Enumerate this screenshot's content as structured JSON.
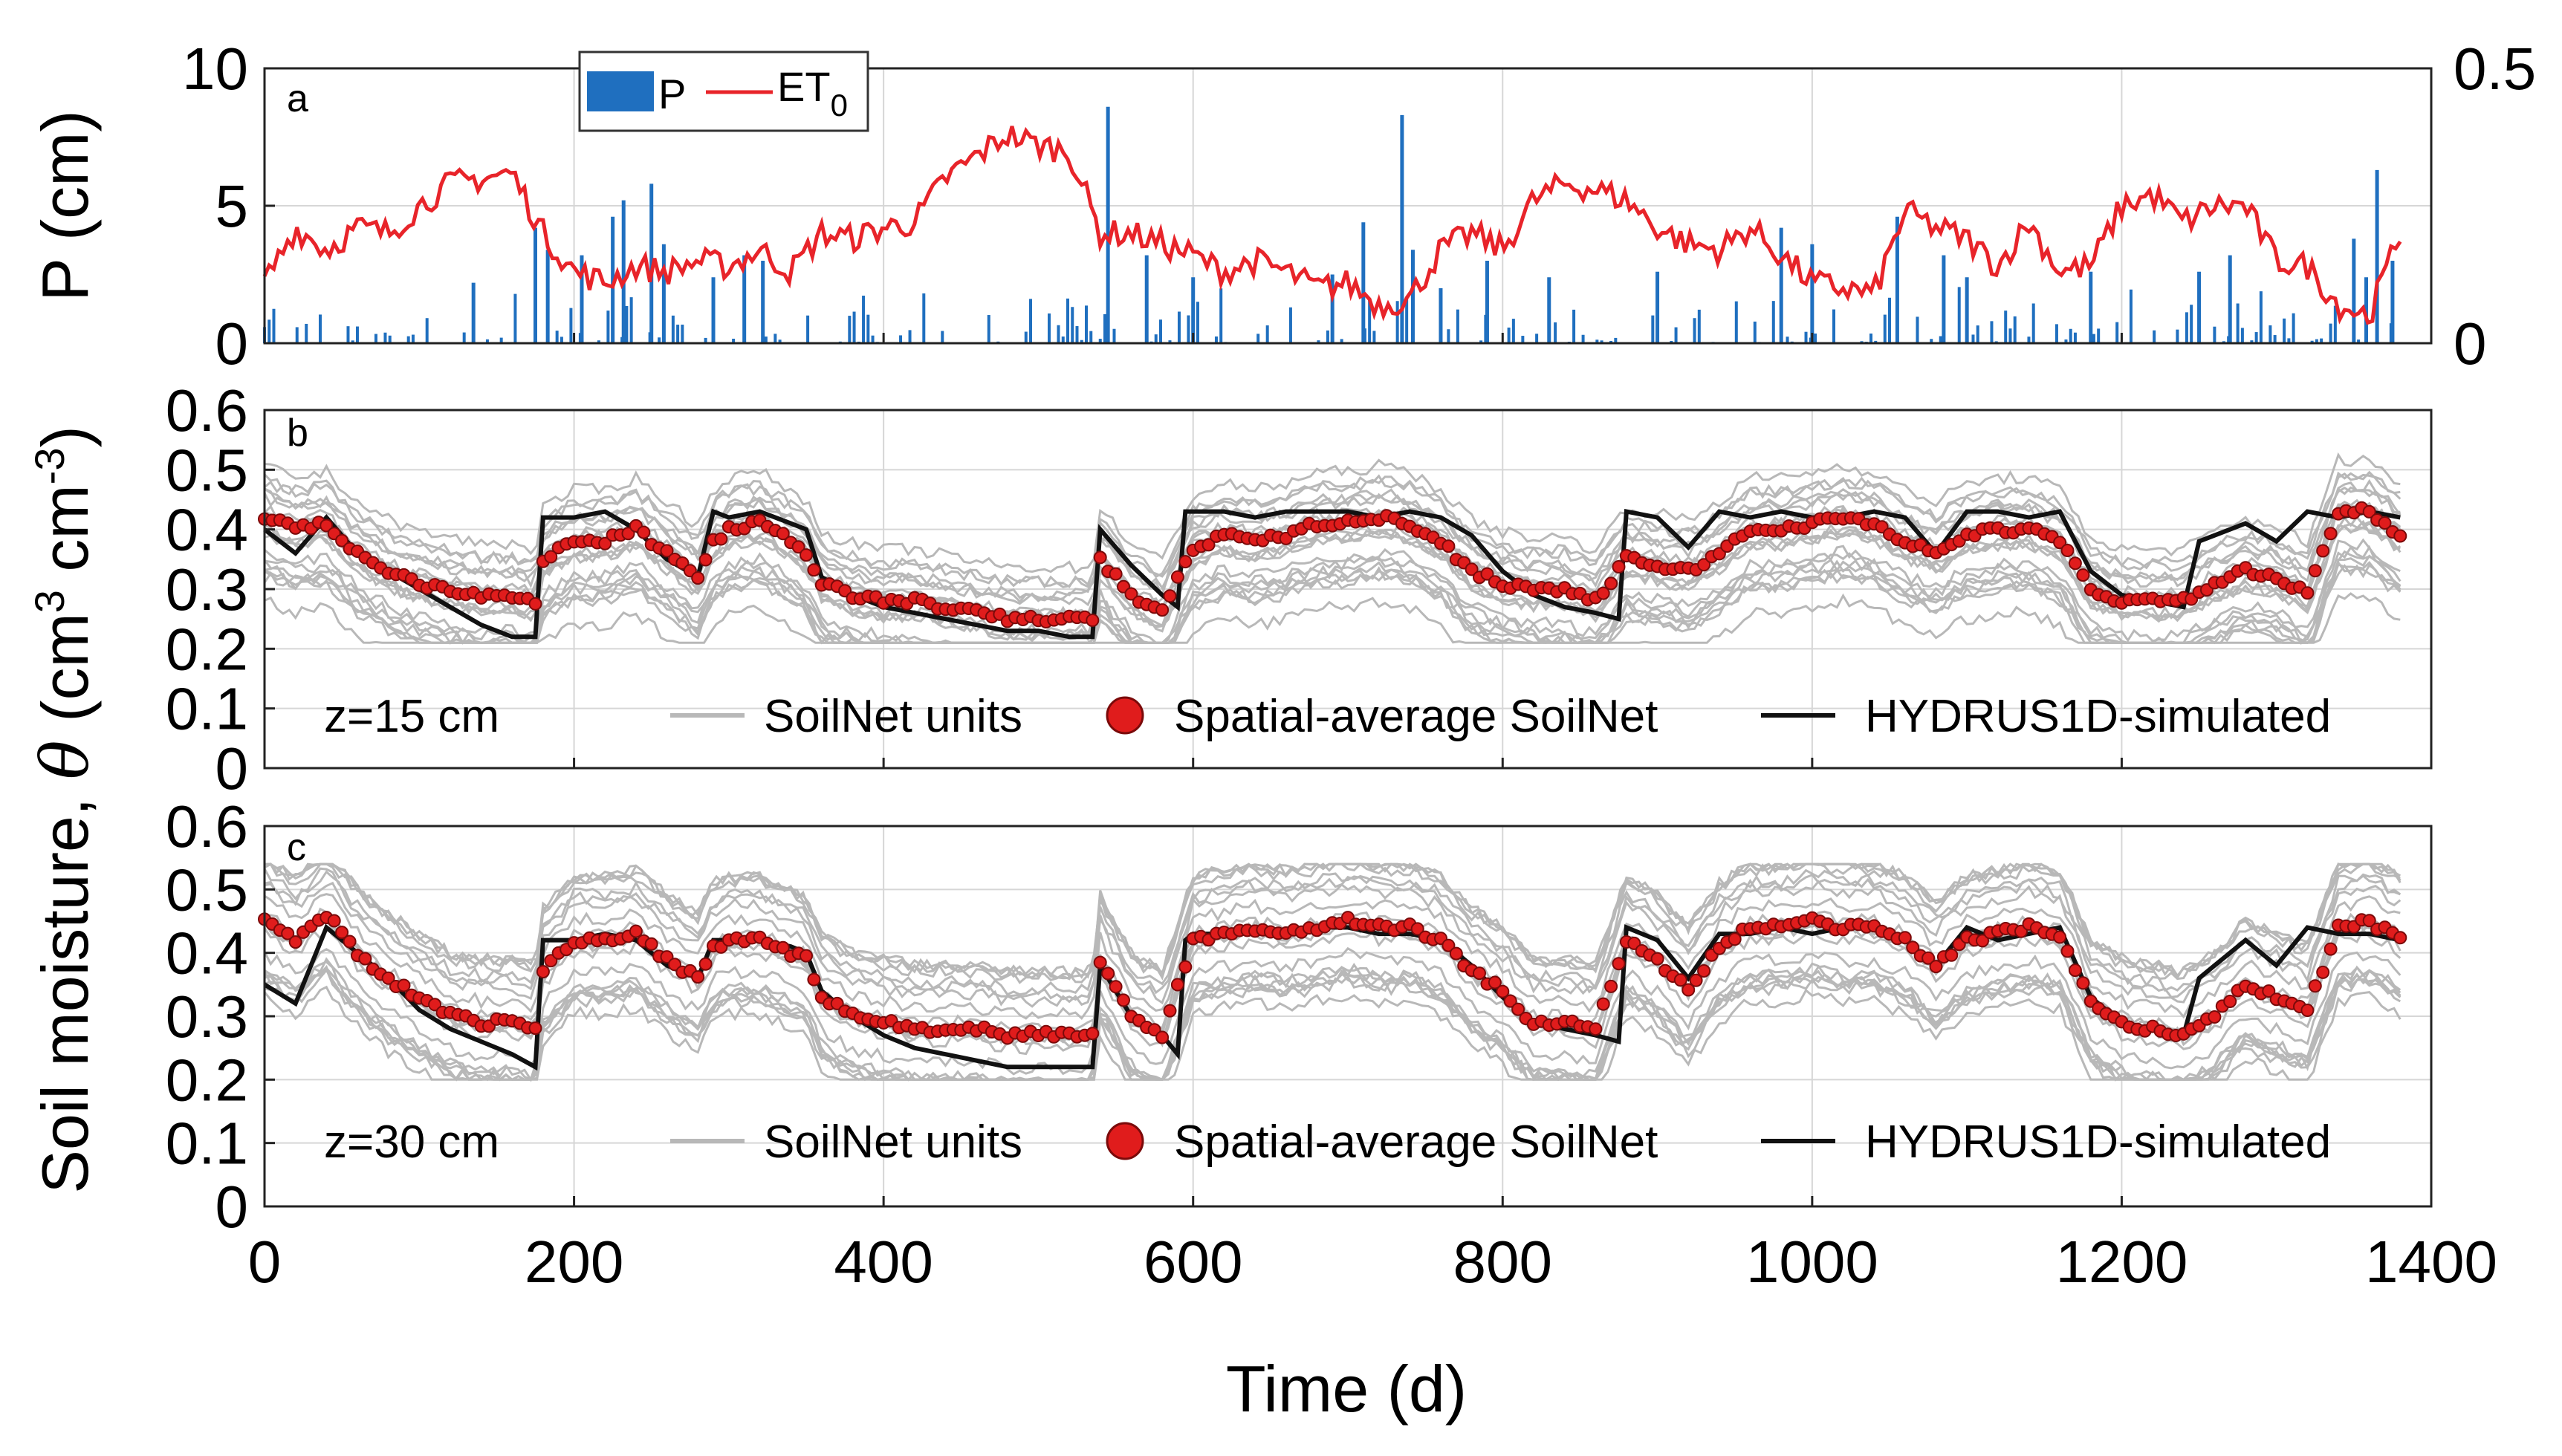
{
  "colors": {
    "precip": "#1f6fbf",
    "et0": "#e8242a",
    "units": "#b8b8b8",
    "avg_fill": "#e01c1c",
    "avg_edge": "#7a0a0a",
    "sim": "#111111"
  },
  "chart_data": [
    {
      "id": "a",
      "type": "bar+line",
      "panel_label": "a",
      "ylabel": "P (cm)",
      "xlim": [
        0,
        1400
      ],
      "ylim": [
        0,
        10
      ],
      "y2lim": [
        0,
        0.5
      ],
      "y_ticks": [
        "0",
        "5",
        "10"
      ],
      "y2_ticks": [
        "0",
        "0.5"
      ],
      "legend": {
        "p": "P",
        "et0": "ET",
        "et0_sub": "0"
      },
      "series": [
        {
          "name": "P",
          "kind": "bar",
          "note": "daily precipitation spikes, 0-8.6 cm",
          "peaks": [
            [
              135,
              2.2
            ],
            [
              175,
              4.2
            ],
            [
              183,
              3.4
            ],
            [
              205,
              3.2
            ],
            [
              225,
              4.6
            ],
            [
              232,
              5.2
            ],
            [
              250,
              5.8
            ],
            [
              258,
              3.6
            ],
            [
              290,
              2.4
            ],
            [
              310,
              3.2
            ],
            [
              322,
              3.0
            ],
            [
              545,
              8.6
            ],
            [
              570,
              3.2
            ],
            [
              600,
              2.4
            ],
            [
              690,
              2.5
            ],
            [
              710,
              4.4
            ],
            [
              735,
              8.3
            ],
            [
              742,
              3.4
            ],
            [
              760,
              2.0
            ],
            [
              790,
              3.0
            ],
            [
              830,
              2.4
            ],
            [
              900,
              2.6
            ],
            [
              980,
              4.2
            ],
            [
              1000,
              3.6
            ],
            [
              1055,
              4.6
            ],
            [
              1085,
              3.2
            ],
            [
              1100,
              2.4
            ],
            [
              1180,
              2.6
            ],
            [
              1250,
              2.6
            ],
            [
              1270,
              3.2
            ],
            [
              1350,
              3.8
            ],
            [
              1358,
              2.4
            ],
            [
              1365,
              6.3
            ],
            [
              1375,
              3.0
            ]
          ]
        },
        {
          "name": "ET0",
          "kind": "line",
          "note": "reference evapotranspiration (cm/d) on right axis, sampled every 20 d",
          "x": [
            0,
            20,
            40,
            60,
            80,
            100,
            120,
            140,
            160,
            180,
            200,
            220,
            240,
            260,
            280,
            300,
            320,
            340,
            360,
            380,
            400,
            420,
            440,
            460,
            480,
            500,
            520,
            540,
            560,
            580,
            600,
            620,
            640,
            660,
            680,
            700,
            720,
            740,
            760,
            780,
            800,
            820,
            840,
            860,
            880,
            900,
            920,
            940,
            960,
            980,
            1000,
            1020,
            1040,
            1060,
            1080,
            1100,
            1120,
            1140,
            1160,
            1180,
            1200,
            1220,
            1240,
            1260,
            1280,
            1300,
            1320,
            1340,
            1360,
            1380
          ],
          "y": [
            0.11,
            0.21,
            0.17,
            0.21,
            0.2,
            0.25,
            0.29,
            0.3,
            0.31,
            0.2,
            0.13,
            0.11,
            0.14,
            0.13,
            0.15,
            0.14,
            0.17,
            0.13,
            0.2,
            0.19,
            0.21,
            0.22,
            0.3,
            0.34,
            0.38,
            0.36,
            0.35,
            0.2,
            0.2,
            0.18,
            0.16,
            0.13,
            0.15,
            0.13,
            0.1,
            0.11,
            0.07,
            0.08,
            0.17,
            0.2,
            0.17,
            0.26,
            0.29,
            0.28,
            0.26,
            0.21,
            0.18,
            0.17,
            0.21,
            0.16,
            0.11,
            0.1,
            0.09,
            0.24,
            0.21,
            0.19,
            0.14,
            0.22,
            0.13,
            0.14,
            0.25,
            0.27,
            0.22,
            0.25,
            0.25,
            0.15,
            0.14,
            0.07,
            0.05,
            0.2
          ]
        }
      ]
    },
    {
      "id": "b",
      "type": "line+scatter",
      "panel_label": "b",
      "depth_label": "z=15 cm",
      "xlim": [
        0,
        1400
      ],
      "ylim": [
        0,
        0.6
      ],
      "y_ticks": [
        "0",
        "0.1",
        "0.2",
        "0.3",
        "0.4",
        "0.5",
        "0.6"
      ],
      "legend": {
        "units": "SoilNet units",
        "avg": "Spatial-average SoilNet",
        "sim": "HYDRUS1D-simulated"
      },
      "series": [
        {
          "name": "HYDRUS1D-simulated",
          "kind": "line",
          "x": [
            0,
            20,
            40,
            60,
            80,
            100,
            120,
            140,
            160,
            175,
            180,
            200,
            220,
            240,
            260,
            280,
            290,
            300,
            320,
            340,
            350,
            360,
            380,
            400,
            420,
            440,
            460,
            480,
            500,
            520,
            535,
            540,
            560,
            580,
            590,
            595,
            600,
            620,
            640,
            660,
            680,
            700,
            720,
            740,
            760,
            780,
            800,
            820,
            840,
            860,
            875,
            880,
            900,
            920,
            940,
            960,
            980,
            1000,
            1020,
            1040,
            1060,
            1080,
            1100,
            1120,
            1140,
            1160,
            1180,
            1200,
            1220,
            1240,
            1250,
            1260,
            1280,
            1300,
            1320,
            1340,
            1360,
            1380
          ],
          "y": [
            0.4,
            0.36,
            0.42,
            0.36,
            0.33,
            0.3,
            0.27,
            0.24,
            0.22,
            0.22,
            0.42,
            0.42,
            0.43,
            0.4,
            0.35,
            0.32,
            0.43,
            0.42,
            0.43,
            0.41,
            0.4,
            0.32,
            0.29,
            0.27,
            0.26,
            0.25,
            0.24,
            0.23,
            0.23,
            0.22,
            0.22,
            0.4,
            0.34,
            0.29,
            0.27,
            0.43,
            0.43,
            0.43,
            0.42,
            0.43,
            0.43,
            0.43,
            0.42,
            0.43,
            0.42,
            0.39,
            0.33,
            0.29,
            0.27,
            0.26,
            0.25,
            0.43,
            0.42,
            0.37,
            0.43,
            0.42,
            0.43,
            0.42,
            0.42,
            0.43,
            0.42,
            0.36,
            0.43,
            0.43,
            0.42,
            0.43,
            0.33,
            0.29,
            0.28,
            0.27,
            0.38,
            0.39,
            0.41,
            0.38,
            0.43,
            0.42,
            0.43,
            0.42
          ]
        },
        {
          "name": "Spatial-average SoilNet",
          "kind": "scatter",
          "x": [
            0,
            20,
            40,
            60,
            80,
            100,
            120,
            140,
            160,
            175,
            180,
            200,
            220,
            240,
            260,
            280,
            290,
            300,
            320,
            340,
            350,
            360,
            380,
            400,
            420,
            440,
            460,
            480,
            500,
            520,
            535,
            540,
            560,
            580,
            600,
            620,
            640,
            660,
            680,
            700,
            720,
            740,
            760,
            780,
            800,
            820,
            840,
            860,
            880,
            900,
            920,
            940,
            960,
            980,
            1000,
            1020,
            1040,
            1060,
            1080,
            1100,
            1120,
            1140,
            1160,
            1180,
            1200,
            1220,
            1240,
            1260,
            1280,
            1300,
            1320,
            1340,
            1360,
            1380
          ],
          "y": [
            0.42,
            0.4,
            0.41,
            0.36,
            0.33,
            0.31,
            0.3,
            0.29,
            0.29,
            0.28,
            0.35,
            0.38,
            0.38,
            0.4,
            0.36,
            0.32,
            0.38,
            0.4,
            0.41,
            0.38,
            0.36,
            0.31,
            0.29,
            0.28,
            0.28,
            0.27,
            0.26,
            0.25,
            0.25,
            0.25,
            0.25,
            0.35,
            0.29,
            0.26,
            0.37,
            0.39,
            0.38,
            0.39,
            0.41,
            0.41,
            0.42,
            0.41,
            0.38,
            0.33,
            0.31,
            0.3,
            0.3,
            0.28,
            0.35,
            0.34,
            0.33,
            0.36,
            0.4,
            0.4,
            0.41,
            0.42,
            0.41,
            0.38,
            0.36,
            0.39,
            0.4,
            0.4,
            0.38,
            0.3,
            0.28,
            0.28,
            0.28,
            0.31,
            0.33,
            0.32,
            0.29,
            0.43,
            0.43,
            0.39
          ]
        },
        {
          "name": "SoilNet units",
          "kind": "line-bundle",
          "count": 22,
          "range_low": 0.21,
          "range_high": 0.54
        }
      ]
    },
    {
      "id": "c",
      "type": "line+scatter",
      "panel_label": "c",
      "depth_label": "z=30 cm",
      "xlim": [
        0,
        1400
      ],
      "ylim": [
        0,
        0.6
      ],
      "y_ticks": [
        "0",
        "0.1",
        "0.2",
        "0.3",
        "0.4",
        "0.5",
        "0.6"
      ],
      "legend": {
        "units": "SoilNet units",
        "avg": "Spatial-average SoilNet",
        "sim": "HYDRUS1D-simulated"
      },
      "series": [
        {
          "name": "HYDRUS1D-simulated",
          "kind": "line",
          "x": [
            0,
            20,
            40,
            60,
            80,
            100,
            120,
            140,
            160,
            175,
            180,
            200,
            220,
            240,
            260,
            280,
            290,
            300,
            320,
            340,
            350,
            360,
            380,
            400,
            420,
            440,
            460,
            480,
            500,
            520,
            535,
            540,
            560,
            580,
            590,
            595,
            600,
            620,
            640,
            660,
            680,
            700,
            720,
            740,
            760,
            780,
            800,
            820,
            840,
            860,
            875,
            880,
            900,
            920,
            940,
            960,
            980,
            1000,
            1020,
            1040,
            1060,
            1080,
            1100,
            1120,
            1140,
            1160,
            1180,
            1200,
            1220,
            1240,
            1250,
            1260,
            1280,
            1300,
            1320,
            1340,
            1360,
            1380
          ],
          "y": [
            0.35,
            0.32,
            0.44,
            0.4,
            0.36,
            0.31,
            0.28,
            0.26,
            0.24,
            0.22,
            0.42,
            0.42,
            0.43,
            0.42,
            0.38,
            0.36,
            0.42,
            0.42,
            0.42,
            0.41,
            0.4,
            0.34,
            0.3,
            0.27,
            0.25,
            0.24,
            0.23,
            0.22,
            0.22,
            0.22,
            0.22,
            0.38,
            0.3,
            0.27,
            0.24,
            0.42,
            0.43,
            0.43,
            0.44,
            0.43,
            0.44,
            0.44,
            0.43,
            0.43,
            0.42,
            0.38,
            0.33,
            0.29,
            0.28,
            0.27,
            0.26,
            0.44,
            0.42,
            0.36,
            0.43,
            0.43,
            0.44,
            0.43,
            0.44,
            0.44,
            0.42,
            0.38,
            0.44,
            0.42,
            0.43,
            0.44,
            0.33,
            0.29,
            0.28,
            0.27,
            0.36,
            0.38,
            0.42,
            0.38,
            0.44,
            0.43,
            0.43,
            0.42
          ]
        },
        {
          "name": "Spatial-average SoilNet",
          "kind": "scatter",
          "x": [
            0,
            20,
            40,
            60,
            80,
            100,
            120,
            140,
            160,
            175,
            180,
            200,
            220,
            240,
            260,
            280,
            290,
            300,
            320,
            340,
            350,
            360,
            380,
            400,
            420,
            440,
            460,
            480,
            500,
            520,
            535,
            540,
            560,
            580,
            600,
            620,
            640,
            660,
            680,
            700,
            720,
            740,
            760,
            780,
            800,
            820,
            840,
            860,
            880,
            900,
            920,
            940,
            960,
            980,
            1000,
            1020,
            1040,
            1060,
            1080,
            1100,
            1120,
            1140,
            1160,
            1180,
            1200,
            1220,
            1240,
            1260,
            1280,
            1300,
            1320,
            1340,
            1360,
            1380
          ],
          "y": [
            0.45,
            0.42,
            0.46,
            0.4,
            0.36,
            0.33,
            0.3,
            0.29,
            0.29,
            0.28,
            0.37,
            0.42,
            0.42,
            0.43,
            0.39,
            0.36,
            0.41,
            0.42,
            0.42,
            0.4,
            0.39,
            0.33,
            0.3,
            0.29,
            0.28,
            0.28,
            0.28,
            0.27,
            0.27,
            0.27,
            0.27,
            0.39,
            0.3,
            0.27,
            0.42,
            0.43,
            0.44,
            0.43,
            0.44,
            0.45,
            0.44,
            0.44,
            0.42,
            0.37,
            0.34,
            0.29,
            0.29,
            0.28,
            0.42,
            0.39,
            0.34,
            0.41,
            0.44,
            0.44,
            0.45,
            0.44,
            0.44,
            0.42,
            0.38,
            0.42,
            0.43,
            0.44,
            0.43,
            0.32,
            0.29,
            0.28,
            0.27,
            0.3,
            0.35,
            0.33,
            0.31,
            0.44,
            0.45,
            0.42
          ]
        },
        {
          "name": "SoilNet units",
          "kind": "line-bundle",
          "count": 22,
          "range_low": 0.2,
          "range_high": 0.54
        }
      ]
    }
  ],
  "x_axis": {
    "label": "Time (d)",
    "ticks": [
      "0",
      "200",
      "400",
      "600",
      "800",
      "1000",
      "1200",
      "1400"
    ]
  },
  "y_axis_shared": {
    "label_prefix": "Soil moisture, ",
    "label_theta": "θ",
    "label_unit_open": " (cm",
    "label_exp1": "3",
    "label_unit_mid": " cm",
    "label_exp2": "-3",
    "label_unit_close": ")"
  }
}
